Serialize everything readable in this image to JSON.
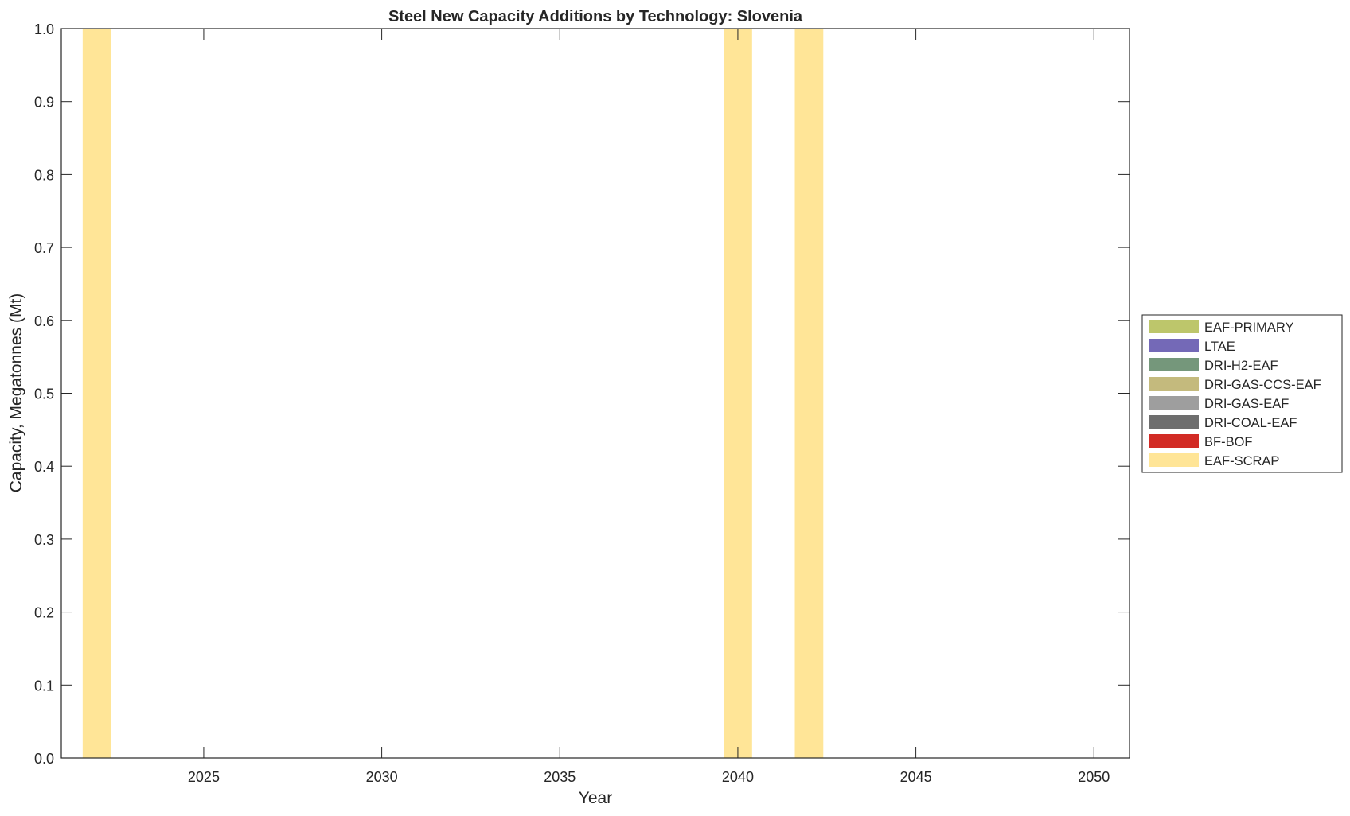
{
  "chart_data": {
    "type": "bar",
    "stacked": true,
    "title": "Steel New Capacity Additions by Technology: Slovenia",
    "xlabel": "Year",
    "ylabel": "Capacity, Megatonnes (Mt)",
    "xlim": [
      2021,
      2051
    ],
    "ylim": [
      0,
      1
    ],
    "xticks": [
      "2025",
      "2030",
      "2035",
      "2040",
      "2045",
      "2050"
    ],
    "yticks": [
      "0.0",
      "0.1",
      "0.2",
      "0.3",
      "0.4",
      "0.5",
      "0.6",
      "0.7",
      "0.8",
      "0.9",
      "1.0"
    ],
    "grid": false,
    "legend_position": "right",
    "legend": [
      {
        "name": "EAF-PRIMARY",
        "color": "#bdc66b"
      },
      {
        "name": "LTAE",
        "color": "#7469b7"
      },
      {
        "name": "DRI-H2-EAF",
        "color": "#75977b"
      },
      {
        "name": "DRI-GAS-CCS-EAF",
        "color": "#c4ba7d"
      },
      {
        "name": "DRI-GAS-EAF",
        "color": "#9e9e9e"
      },
      {
        "name": "DRI-COAL-EAF",
        "color": "#6e6e6e"
      },
      {
        "name": "BF-BOF",
        "color": "#d22b25"
      },
      {
        "name": "EAF-SCRAP",
        "color": "#ffe597"
      }
    ],
    "series": [
      {
        "name": "EAF-SCRAP",
        "x": [
          2022,
          2040,
          2042
        ],
        "values": [
          1.0,
          1.0,
          1.0
        ]
      }
    ]
  }
}
